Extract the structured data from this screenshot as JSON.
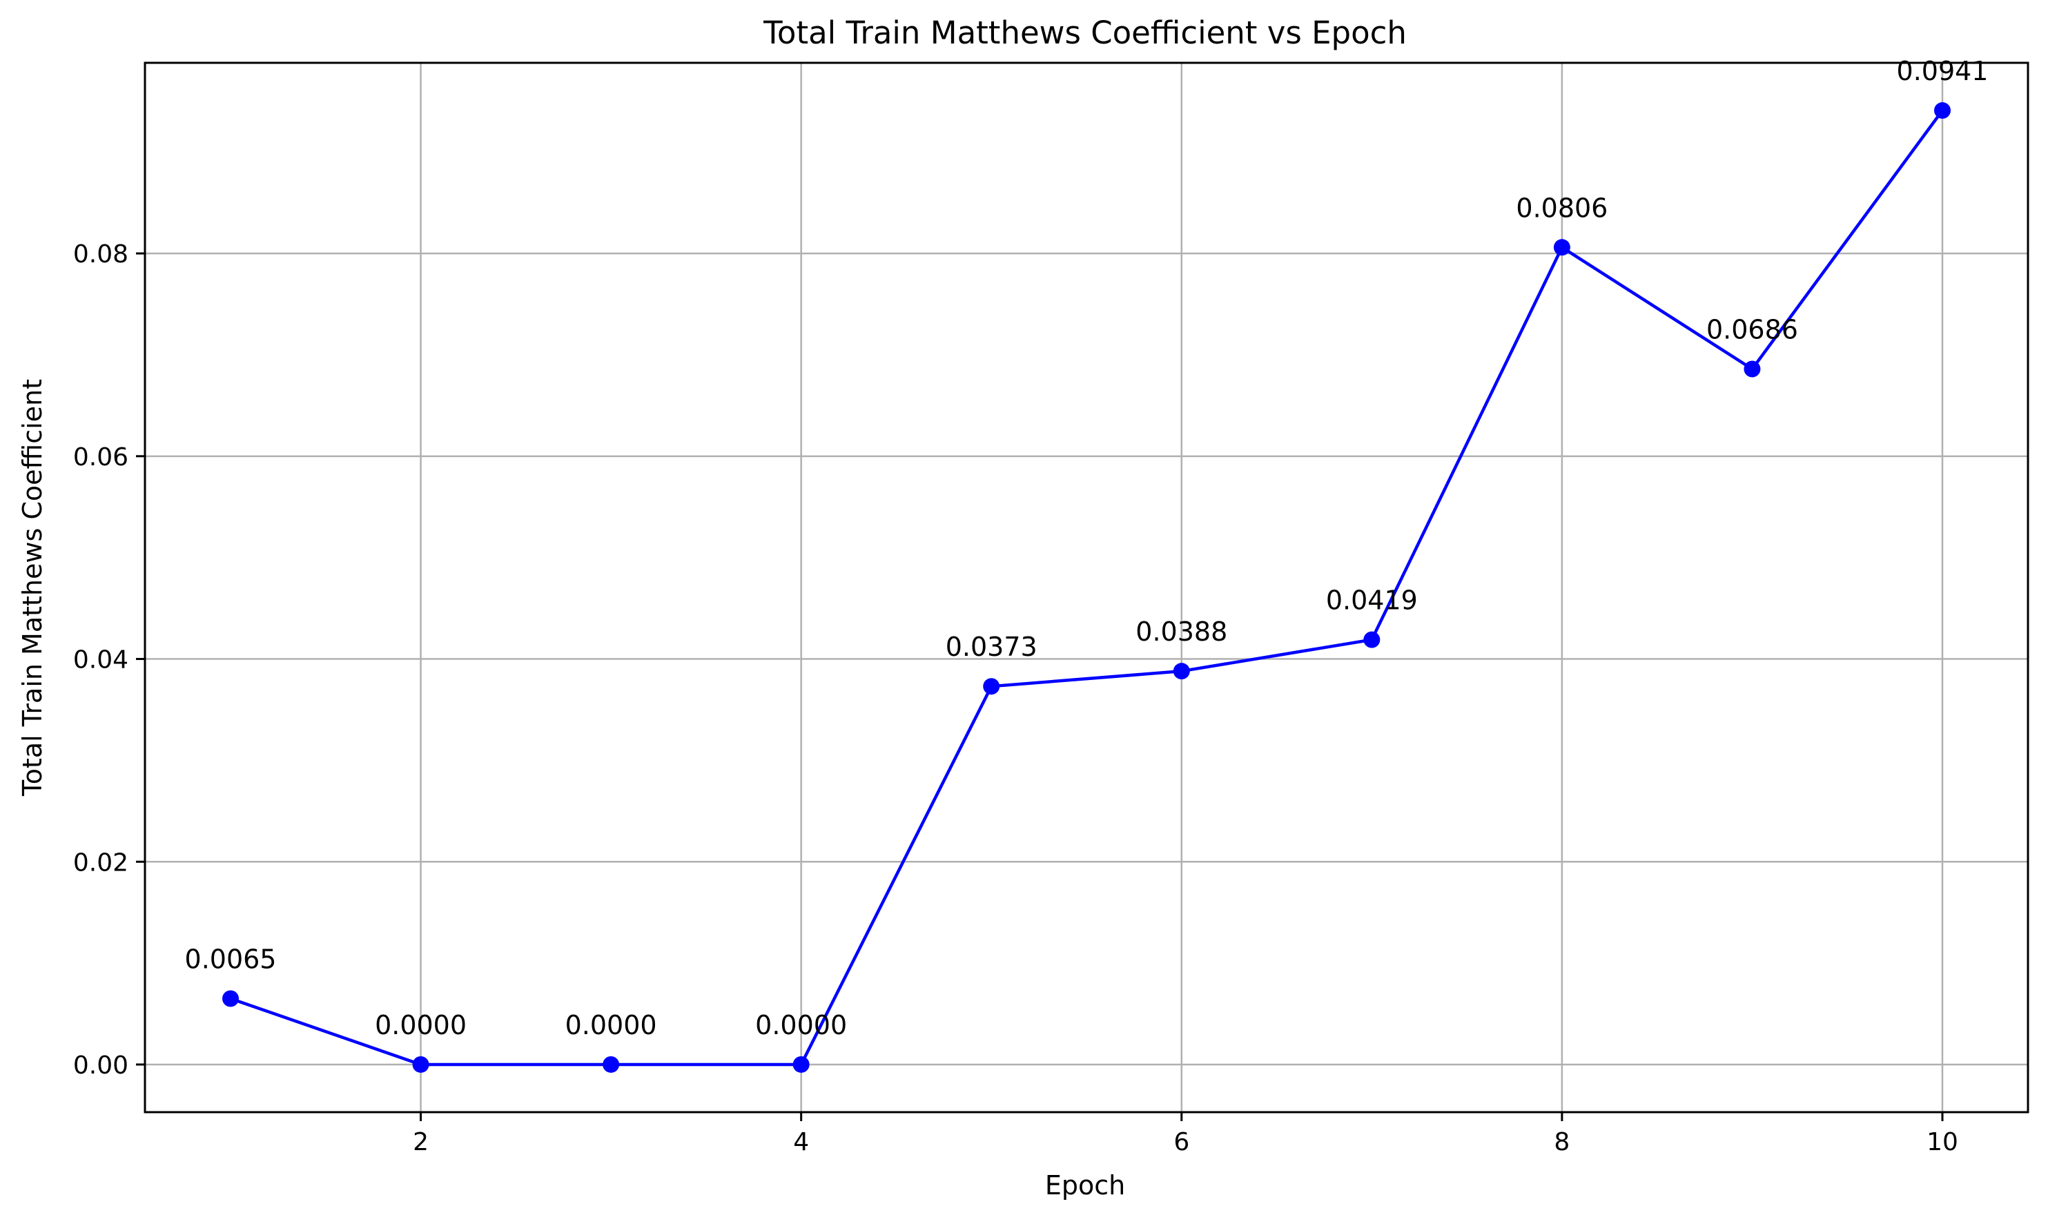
{
  "chart_data": {
    "type": "line",
    "title": "Total Train Matthews Coefficient vs Epoch",
    "xlabel": "Epoch",
    "ylabel": "Total Train Matthews Coefficient",
    "x": [
      1,
      2,
      3,
      4,
      5,
      6,
      7,
      8,
      9,
      10
    ],
    "series": [
      {
        "values": [
          0.0065,
          0.0,
          0.0,
          0.0,
          0.0373,
          0.0388,
          0.0419,
          0.0806,
          0.0686,
          0.0941
        ],
        "data_labels": [
          "0.0065",
          "0.0000",
          "0.0000",
          "0.0000",
          "0.0373",
          "0.0388",
          "0.0419",
          "0.0806",
          "0.0686",
          "0.0941"
        ],
        "color": "#0000ff",
        "marker": "circle"
      }
    ],
    "xlim": [
      0.55,
      10.45
    ],
    "ylim": [
      -0.0047,
      0.0988
    ],
    "xticks": [
      2,
      4,
      6,
      8,
      10
    ],
    "xtick_labels": [
      "2",
      "4",
      "6",
      "8",
      "10"
    ],
    "yticks": [
      0.0,
      0.02,
      0.04,
      0.06,
      0.08
    ],
    "ytick_labels": [
      "0.00",
      "0.02",
      "0.04",
      "0.06",
      "0.08"
    ],
    "grid": true,
    "legend": "none"
  }
}
